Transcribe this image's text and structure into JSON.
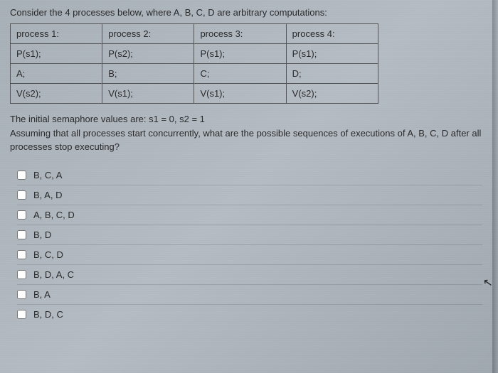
{
  "intro": "Consider the 4 processes below, where A, B, C, D are arbitrary computations:",
  "table": {
    "rows": [
      [
        "process 1:",
        "process 2:",
        "process 3:",
        "process 4:"
      ],
      [
        "P(s1);",
        "P(s2);",
        "P(s1);",
        "P(s1);"
      ],
      [
        "A;",
        "B;",
        "C;",
        "D;"
      ],
      [
        "V(s2);",
        "V(s1);",
        "V(s1);",
        "V(s2);"
      ]
    ]
  },
  "question_line1": "The initial semaphore values are: s1 = 0, s2 = 1",
  "question_line2": "Assuming that all processes start concurrently, what are the possible sequences of executions of A, B, C, D after all processes stop executing?",
  "options": [
    "B, C, A",
    "B, A, D",
    "A, B, C, D",
    "B, D",
    "B, C, D",
    "B, D, A, C",
    "B, A",
    "B, D, C"
  ],
  "colors": {
    "text": "#2a2a2a",
    "border": "#555555",
    "row_divider": "rgba(0,0,0,0.12)"
  }
}
